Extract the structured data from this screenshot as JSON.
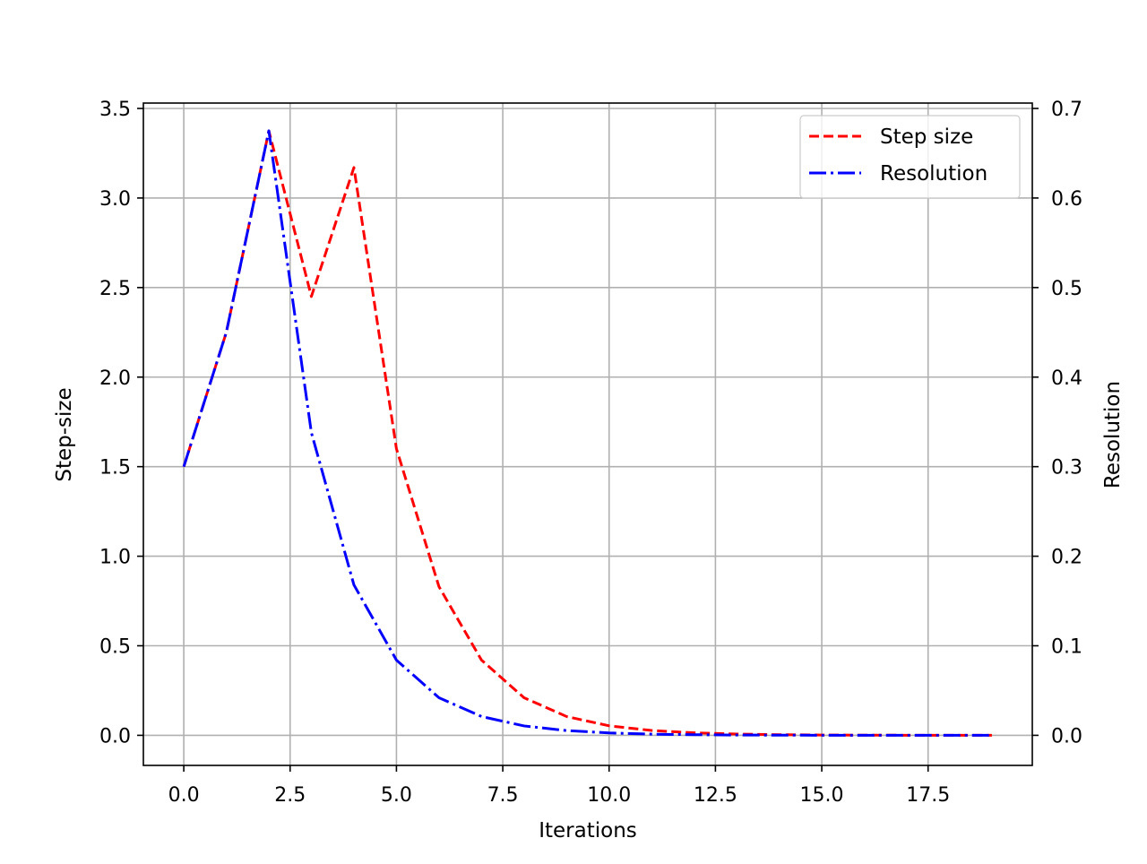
{
  "chart_data": {
    "type": "line",
    "title": "",
    "xlabel": "Iterations",
    "ylabel": "Step-size",
    "y2label": "Resolution",
    "xlim": [
      -0.95,
      19.95
    ],
    "ylim": [
      -0.168,
      3.53
    ],
    "y2lim": [
      -0.0336,
      0.706
    ],
    "grid": true,
    "legend_position": "top-right",
    "x_ticks": [
      "0.0",
      "2.5",
      "5.0",
      "7.5",
      "10.0",
      "12.5",
      "15.0",
      "17.5"
    ],
    "y_ticks": [
      "0.0",
      "0.5",
      "1.0",
      "1.5",
      "2.0",
      "2.5",
      "3.0",
      "3.5"
    ],
    "y2_ticks": [
      "0.0",
      "0.1",
      "0.2",
      "0.3",
      "0.4",
      "0.5",
      "0.6",
      "0.7"
    ],
    "x": [
      0,
      1,
      2,
      3,
      4,
      5,
      6,
      7,
      8,
      9,
      10,
      11,
      12,
      13,
      14,
      15,
      16,
      17,
      18,
      19
    ],
    "series": [
      {
        "name": "Step size",
        "axis": "left",
        "color": "#ff0000",
        "dash": "dashed",
        "values": [
          1.5,
          2.25,
          3.375,
          2.45,
          3.17,
          1.6,
          0.83,
          0.42,
          0.21,
          0.105,
          0.053,
          0.027,
          0.014,
          0.007,
          0.0035,
          0.0018,
          0.0009,
          0.0005,
          0.0002,
          0.0001
        ]
      },
      {
        "name": "Resolution",
        "axis": "right",
        "color": "#0000ff",
        "dash": "dashdot",
        "values": [
          0.3,
          0.45,
          0.675,
          0.338,
          0.168,
          0.084,
          0.042,
          0.021,
          0.0105,
          0.0053,
          0.0027,
          0.0013,
          0.0007,
          0.0003,
          0.0002,
          0.0001,
          0.0,
          0.0,
          0.0,
          0.0
        ]
      }
    ]
  }
}
